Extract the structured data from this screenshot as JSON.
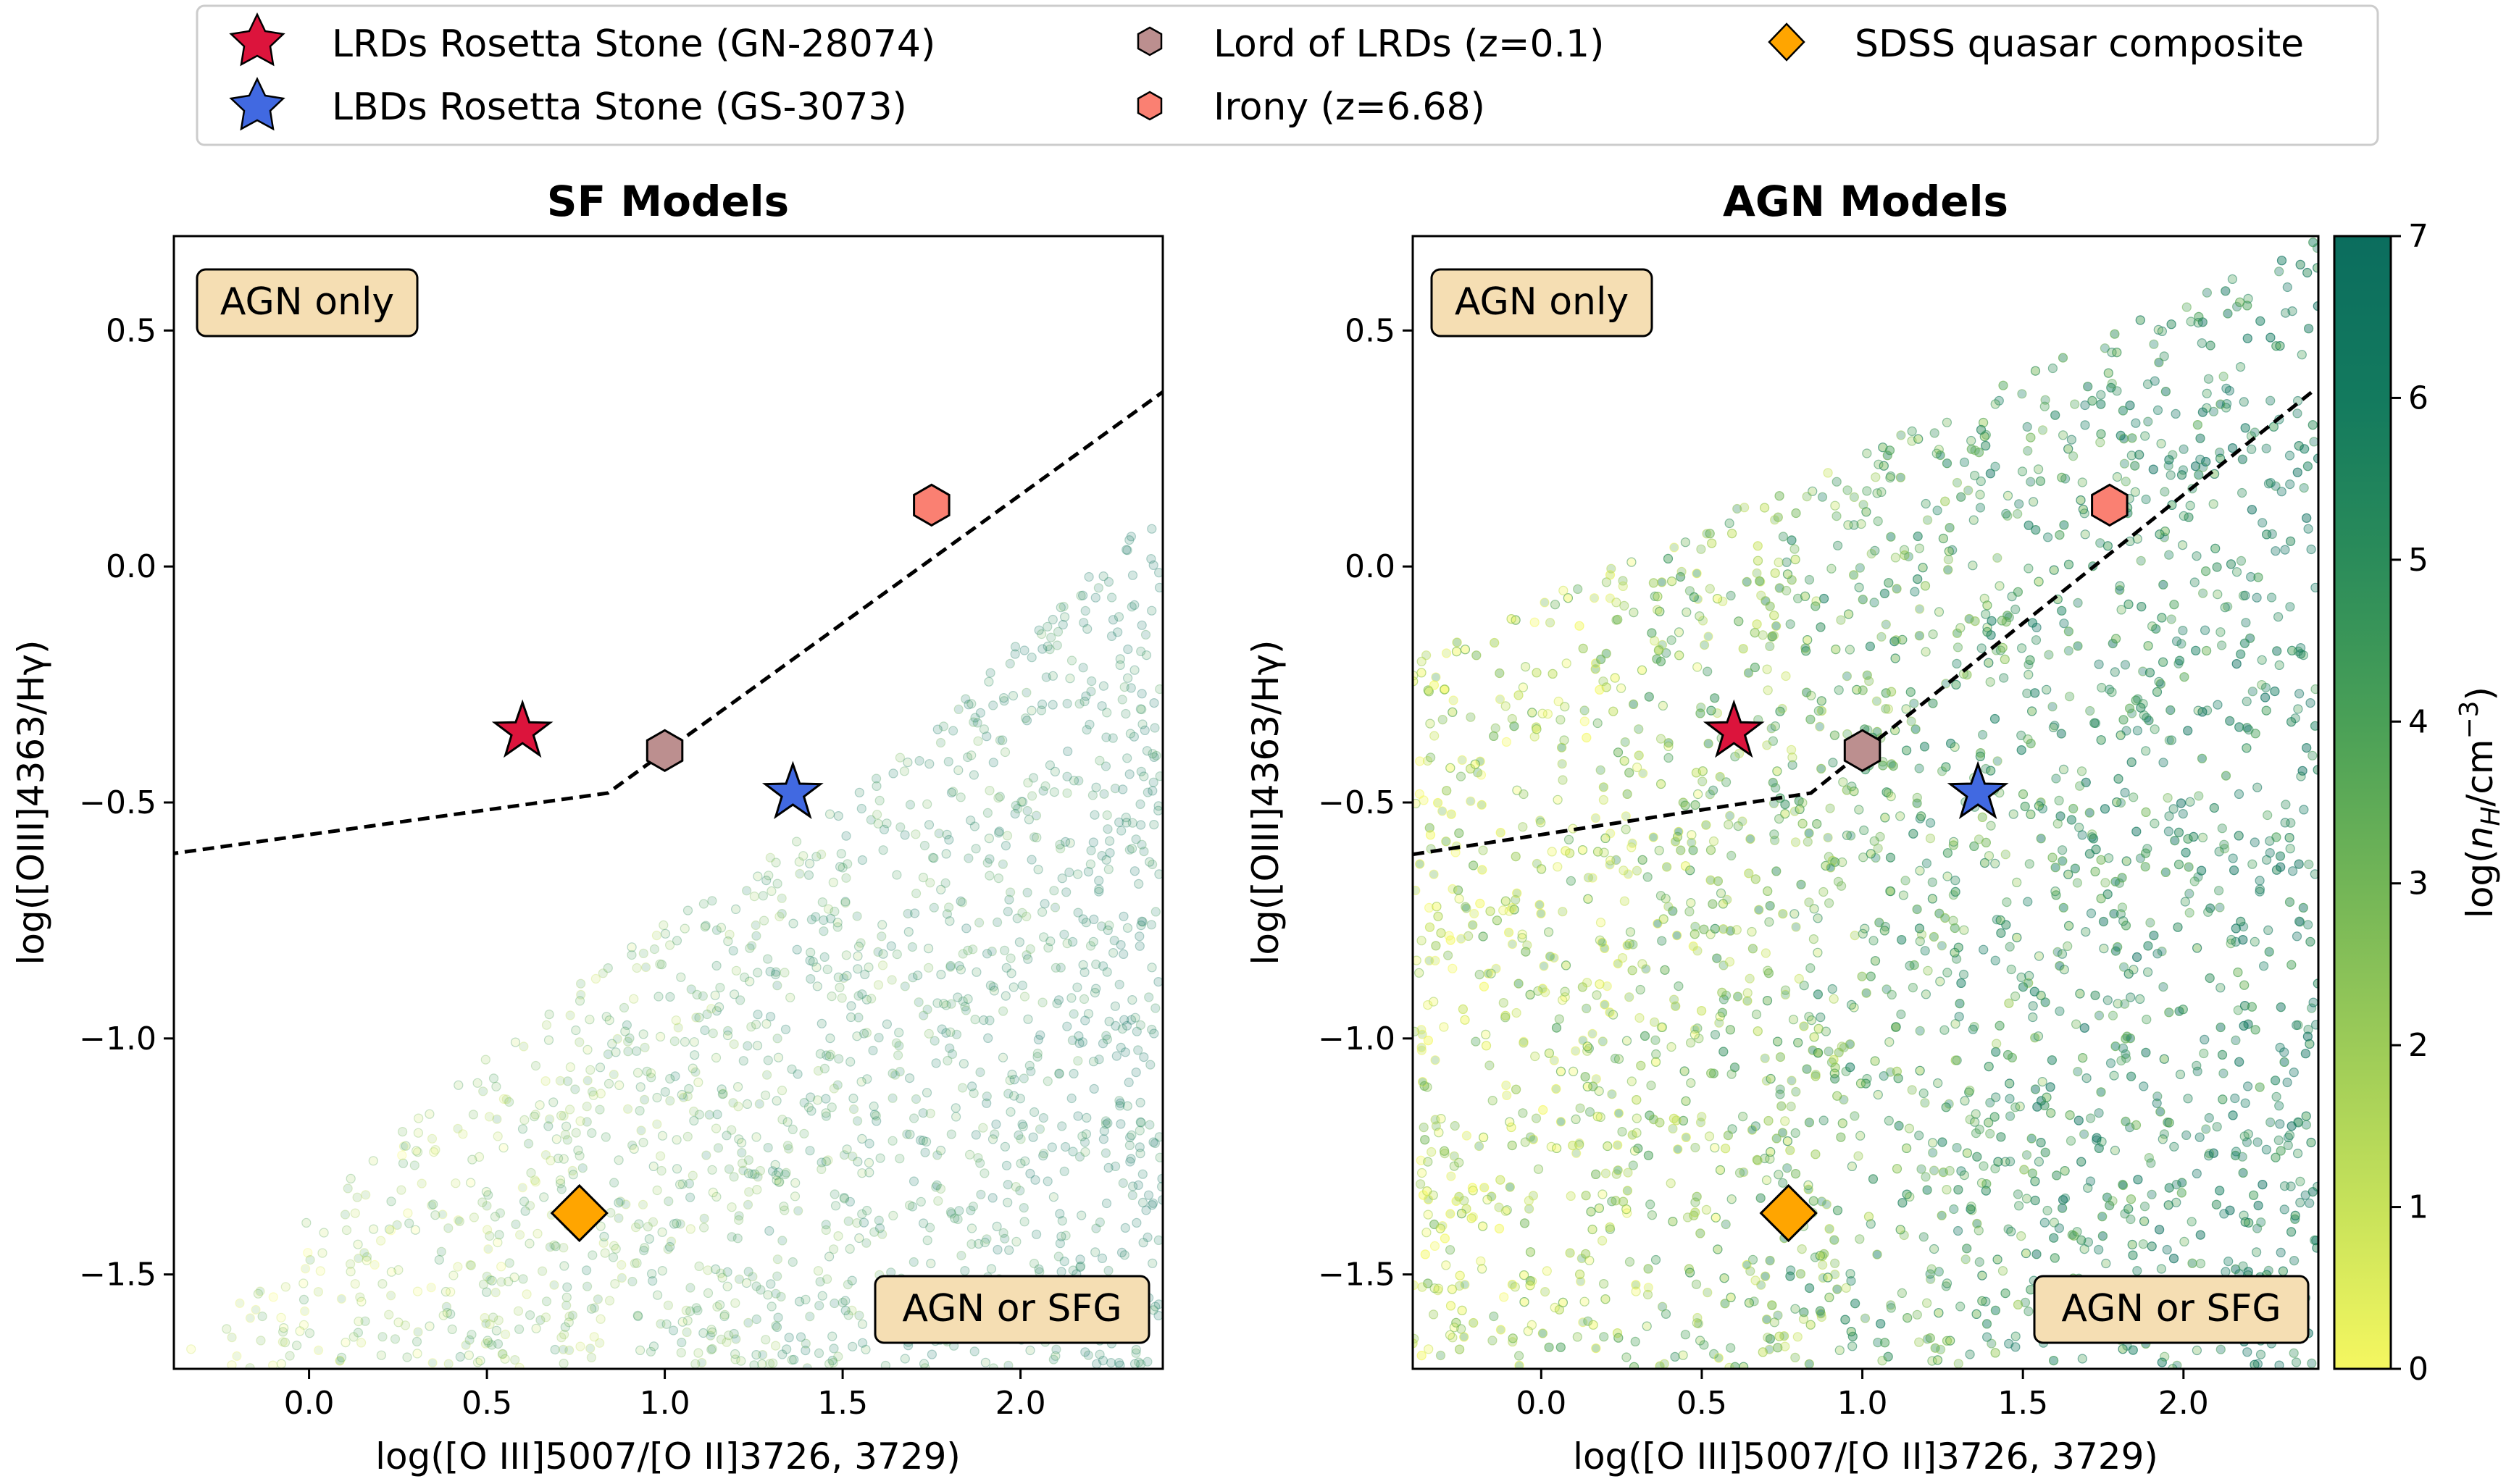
{
  "chart_data": [
    {
      "type": "scatter",
      "panel": "left",
      "title": "SF Models",
      "xlabel": "log([O III]5007/[O II]3726, 3729)",
      "ylabel": "log([OIII]4363/Hγ)",
      "xlim": [
        -0.38,
        2.4
      ],
      "ylim": [
        -1.7,
        0.7
      ],
      "xticks": [
        0.0,
        0.5,
        1.0,
        1.5,
        2.0
      ],
      "xtick_labels": [
        "0.0",
        "0.5",
        "1.0",
        "1.5",
        "2.0"
      ],
      "yticks": [
        0.5,
        0.0,
        -0.5,
        -1.0,
        -1.5
      ],
      "ytick_labels": [
        "0.5",
        "0.0",
        "−0.5",
        "−1.0",
        "−1.5"
      ],
      "model_cloud": "dense cloud of photoionization model points colored by log(nH/cm^-3), filling the region below a boundary rising from about (-0.3,-1.6) to (2.4,0.15)",
      "demarcation_line": {
        "style": "dashed",
        "points": [
          [
            -0.4,
            -0.61
          ],
          [
            0.84,
            -0.48
          ],
          [
            2.4,
            0.37
          ]
        ]
      },
      "region_labels": [
        "AGN only",
        "AGN or SFG"
      ],
      "objects": [
        {
          "name": "LRDs Rosetta Stone (GN-28074)",
          "x": 0.6,
          "y": -0.35
        },
        {
          "name": "LBDs Rosetta Stone (GS-3073)",
          "x": 1.36,
          "y": -0.48
        },
        {
          "name": "Lord of LRDs (z=0.1)",
          "x": 1.0,
          "y": -0.39
        },
        {
          "name": "Irony (z=6.68)",
          "x": 1.75,
          "y": 0.13
        },
        {
          "name": "SDSS quasar composite",
          "x": 0.76,
          "y": -1.37
        }
      ]
    },
    {
      "type": "scatter",
      "panel": "right",
      "title": "AGN Models",
      "xlabel": "log([O III]5007/[O II]3726, 3729)",
      "ylabel": "log([OIII]4363/Hγ)",
      "xlim": [
        -0.4,
        2.42
      ],
      "ylim": [
        -1.7,
        0.7
      ],
      "xticks": [
        0.0,
        0.5,
        1.0,
        1.5,
        2.0
      ],
      "xtick_labels": [
        "0.0",
        "0.5",
        "1.0",
        "1.5",
        "2.0"
      ],
      "yticks": [
        0.5,
        0.0,
        -0.5,
        -1.0,
        -1.5
      ],
      "ytick_labels": [
        "0.5",
        "0.0",
        "−0.5",
        "−1.0",
        "−1.5"
      ],
      "model_cloud": "dense cloud of AGN photoionization model points colored by log(nH/cm^-3), filling nearly the whole panel below a boundary rising from about (-0.4,-0.2) to (2.4,0.7)",
      "demarcation_line": {
        "style": "dashed",
        "points": [
          [
            -0.4,
            -0.61
          ],
          [
            0.84,
            -0.48
          ],
          [
            2.4,
            0.37
          ]
        ]
      },
      "region_labels": [
        "AGN only",
        "AGN or SFG"
      ],
      "objects": [
        {
          "name": "LRDs Rosetta Stone (GN-28074)",
          "x": 0.6,
          "y": -0.35
        },
        {
          "name": "LBDs Rosetta Stone (GS-3073)",
          "x": 1.36,
          "y": -0.48
        },
        {
          "name": "Lord of LRDs (z=0.1)",
          "x": 1.0,
          "y": -0.39
        },
        {
          "name": "Irony (z=6.68)",
          "x": 1.77,
          "y": 0.13
        },
        {
          "name": "SDSS quasar composite",
          "x": 0.77,
          "y": -1.37
        }
      ]
    }
  ],
  "colorbar": {
    "label": "log(nH/cm⁻³)",
    "label_base": "log(",
    "label_n": "n",
    "label_sub": "H",
    "label_mid": "/cm",
    "label_sup": "−3",
    "label_end": ")",
    "range": [
      0,
      7
    ],
    "ticks": [
      0,
      1,
      2,
      3,
      4,
      5,
      6,
      7
    ],
    "tick_labels": [
      "0",
      "1",
      "2",
      "3",
      "4",
      "5",
      "6",
      "7"
    ],
    "colors": [
      "#f5f760",
      "#c7e25a",
      "#9ccb58",
      "#72b557",
      "#4aa057",
      "#2b8c5a",
      "#137a5e",
      "#0b6d5e"
    ]
  },
  "legend": [
    {
      "label": "LRDs Rosetta Stone (GN-28074)",
      "marker": "star",
      "color": "#dc143c"
    },
    {
      "label": "LBDs Rosetta Stone (GS-3073)",
      "marker": "star",
      "color": "#4169e1"
    },
    {
      "label": "Lord of LRDs (z=0.1)",
      "marker": "hexagon",
      "color": "#bc8f8f"
    },
    {
      "label": "Irony (z=6.68)",
      "marker": "hexagon",
      "color": "#fa8072"
    },
    {
      "label": "SDSS quasar composite",
      "marker": "diamond",
      "color": "#ffa500"
    }
  ]
}
